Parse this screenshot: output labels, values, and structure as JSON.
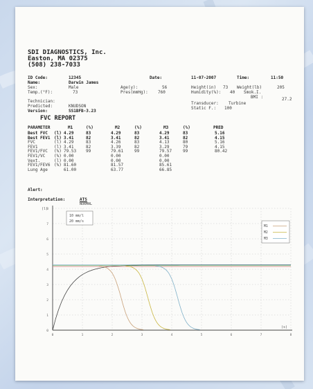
{
  "company": {
    "name": "SDI DIAGNOSTICS, Inc.",
    "city": "Easton, MA 02375",
    "phone": "(508) 238-7033"
  },
  "patient": {
    "id_label": "ID Code:",
    "id_value": "12345",
    "name_label": "Name:",
    "name_value": "Darwin James",
    "sex_label": "Sex:",
    "sex_value": "Male",
    "temp_label": "Temp.(°F):",
    "temp_value": "73",
    "age_label": "Age(y):",
    "age_value": "56",
    "pres_label": "Pres(mmHg):",
    "pres_value": "760",
    "date_label": "Date:",
    "date_value": "11-07-2007",
    "time_label": "Time:",
    "time_value": "11:50",
    "height_label": "Height(in)",
    "height_value": "73",
    "weight_label": "Weight(lb)",
    "weight_value": "205",
    "humidity_label": "Humidity(%):",
    "humidity_value": "40",
    "smok_label": "Smok.I.",
    "smok_value": "",
    "bmi_label": "BMI :",
    "bmi_value": "27.2",
    "tech_label": "Technician:",
    "tech_value": "",
    "pred_label": "Predicted:",
    "pred_value": "KNUDSON",
    "version_label": "Version:",
    "version_value": "SS1BFB-3.23",
    "transducer_label": "Transducer:",
    "transducer_value": "Turbine",
    "static_label": "Static F.:",
    "static_value": "100"
  },
  "report": {
    "title": "FVC REPORT",
    "headers": [
      "PARAMETER",
      "M1",
      "(%)",
      "M2",
      "(%)",
      "M3",
      "(%)",
      "PRED"
    ],
    "rows": [
      {
        "param": "Best FVC",
        "unit": "(l)",
        "m1": "4.29",
        "p1": "83",
        "m2": "4.29",
        "p2": "83",
        "m3": "4.29",
        "p3": "83",
        "pred": "5.16",
        "bold": true
      },
      {
        "param": "Best FEV1",
        "unit": "(l)",
        "m1": "3.41",
        "p1": "82",
        "m2": "3.41",
        "p2": "82",
        "m3": "3.41",
        "p3": "82",
        "pred": "4.15",
        "bold": true
      },
      {
        "param": "FVC",
        "unit": "(l)",
        "m1": "4.29",
        "p1": "83",
        "m2": "4.26",
        "p2": "83",
        "m3": "4.13",
        "p3": "80",
        "pred": "5.16",
        "bold": false
      },
      {
        "param": "FEV1",
        "unit": "(l)",
        "m1": "3.41",
        "p1": "82",
        "m2": "3.39",
        "p2": "82",
        "m3": "3.29",
        "p3": "79",
        "pred": "4.15",
        "bold": false
      },
      {
        "param": "FEV1/FVC",
        "unit": "(%)",
        "m1": "79.53",
        "p1": "99",
        "m2": "79.61",
        "p2": "99",
        "m3": "79.57",
        "p3": "99",
        "pred": "80.42",
        "bold": false
      },
      {
        "param": "FEV1/VC",
        "unit": "(%)",
        "m1": "0.00",
        "p1": "",
        "m2": "0.00",
        "p2": "",
        "m3": "0.00",
        "p3": "",
        "pred": "",
        "bold": false
      },
      {
        "param": "Vext.",
        "unit": "(l)",
        "m1": "0.00",
        "p1": "",
        "m2": "0.00",
        "p2": "",
        "m3": "0.00",
        "p3": "",
        "pred": "",
        "bold": false
      },
      {
        "param": "FEV1/FEV6",
        "unit": "(%)",
        "m1": "81.60",
        "p1": "",
        "m2": "81.57",
        "p2": "",
        "m3": "85.61",
        "p3": "",
        "pred": "",
        "bold": false
      },
      {
        "param": "Lung Age",
        "unit": "",
        "m1": "61.00",
        "p1": "",
        "m2": "63.77",
        "p2": "",
        "m3": "66.85",
        "p3": "",
        "pred": "",
        "bold": false
      }
    ],
    "alert_label": "Alert:",
    "interp_label": "Interpretation:",
    "interp_value": "ATS",
    "interp_value2": "NORMAL"
  },
  "graph": {
    "y_unit": "(l)",
    "x_unit": "(s)",
    "scale1": "10 mm/l",
    "scale2": "20 mm/s",
    "legend": [
      "M1",
      "M2",
      "M3"
    ],
    "colors": {
      "m1": "#c8a078",
      "m2": "#c9b640",
      "m3": "#7fb0c8",
      "tri1": "#e07070",
      "tri2": "#5fa86a"
    },
    "y_ticks": [
      "0",
      "1",
      "2",
      "3",
      "4",
      "5",
      "6",
      "7",
      "8"
    ],
    "x_ticks": [
      "0",
      "1",
      "2",
      "3",
      "4",
      "5",
      "6",
      "7",
      "8"
    ]
  }
}
